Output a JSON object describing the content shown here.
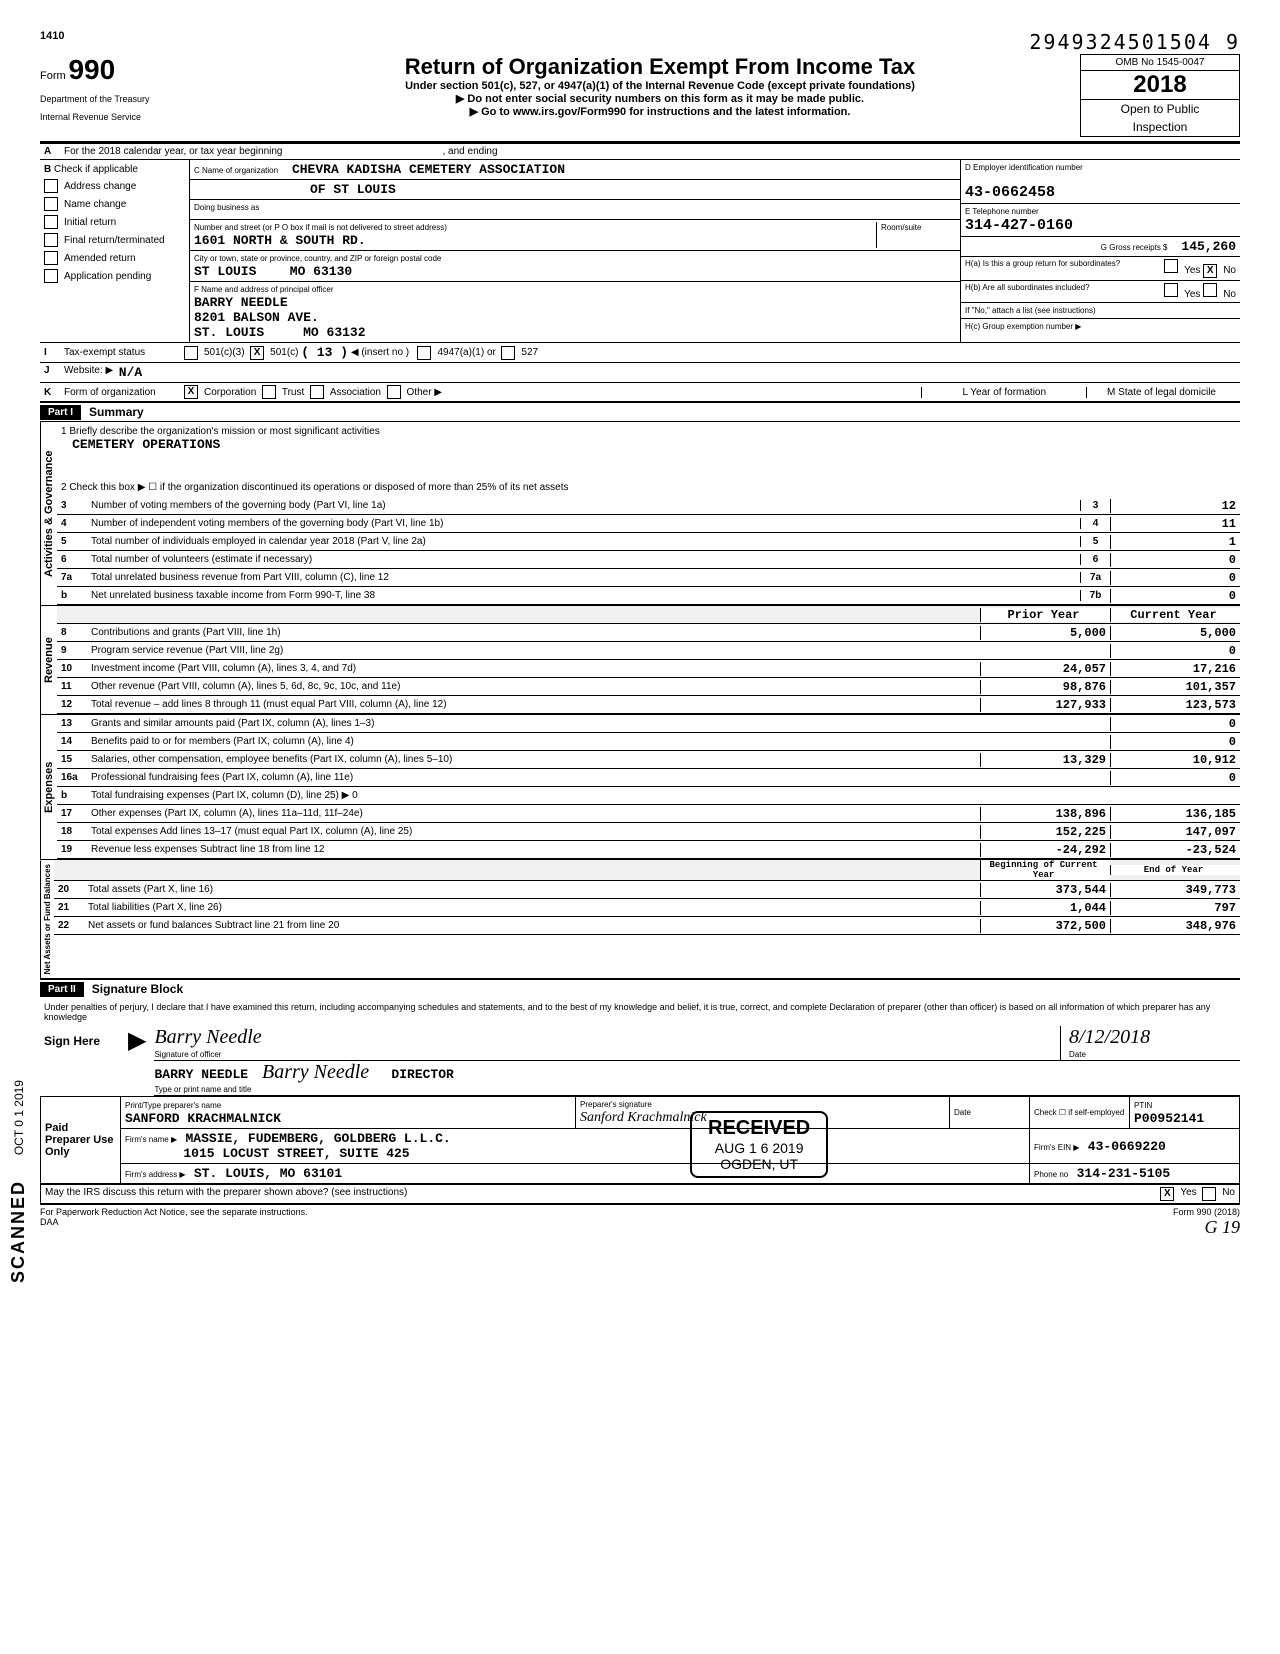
{
  "header": {
    "page_num_top": "1410",
    "sequence": "2949324501504 9",
    "form_label": "Form",
    "form_num": "990",
    "title": "Return of Organization Exempt From Income Tax",
    "subtitle": "Under section 501(c), 527, or 4947(a)(1) of the Internal Revenue Code (except private foundations)",
    "line1": "▶ Do not enter social security numbers on this form as it may be made public.",
    "line2": "▶ Go to www.irs.gov/Form990 for instructions and the latest information.",
    "dept": "Department of the Treasury",
    "irs": "Internal Revenue Service",
    "omb": "OMB No 1545-0047",
    "year": "2018",
    "open": "Open to Public",
    "inspection": "Inspection"
  },
  "row_a": {
    "label": "A",
    "text": "For the 2018 calendar year, or tax year beginning",
    "and_ending": ", and ending"
  },
  "section_b": {
    "label": "B",
    "check_label": "Check if applicable",
    "checks": [
      "Address change",
      "Name change",
      "Initial return",
      "Final return/terminated",
      "Amended return",
      "Application pending"
    ],
    "c_label": "C Name of organization",
    "org_name": "CHEVRA KADISHA CEMETERY ASSOCIATION",
    "org_name2": "OF ST LOUIS",
    "dba_label": "Doing business as",
    "addr_label": "Number and street (or P O box if mail is not delivered to street address)",
    "addr": "1601 NORTH & SOUTH RD.",
    "room_label": "Room/suite",
    "city_label": "City or town, state or province, country, and ZIP or foreign postal code",
    "city": "ST LOUIS",
    "state_zip": "MO  63130",
    "f_label": "F Name and address of principal officer",
    "officer": "BARRY NEEDLE",
    "officer_addr": "8201 BALSON AVE.",
    "officer_city": "ST. LOUIS",
    "officer_state_zip": "MO  63132"
  },
  "right_col": {
    "d_label": "D Employer identification number",
    "ein": "43-0662458",
    "e_label": "E Telephone number",
    "phone": "314-427-0160",
    "g_label": "G Gross receipts $",
    "gross": "145,260",
    "ha_label": "H(a) Is this a group return for subordinates?",
    "hb_label": "H(b) Are all subordinates included?",
    "h_note": "If \"No,\" attach a list (see instructions)",
    "hc_label": "H(c) Group exemption number ▶",
    "yes": "Yes",
    "no": "No",
    "x": "X"
  },
  "row_i": {
    "label": "I",
    "text": "Tax-exempt status",
    "opts": [
      "501(c)(3)",
      "501(c)",
      "(  13  )",
      "◀ (insert no )",
      "4947(a)(1) or",
      "527"
    ],
    "checked_501c": "X"
  },
  "row_j": {
    "label": "J",
    "text": "Website: ▶",
    "val": "N/A"
  },
  "row_k": {
    "label": "K",
    "text": "Form of organization",
    "opts": [
      "Corporation",
      "Trust",
      "Association",
      "Other ▶"
    ],
    "checked_corp": "X",
    "l_label": "L   Year of formation",
    "m_label": "M   State of legal domicile"
  },
  "part1": {
    "label": "Part I",
    "title": "Summary",
    "mission_label": "1   Briefly describe the organization's mission or most significant activities",
    "mission": "CEMETERY OPERATIONS",
    "line2": "2   Check this box ▶ ☐  if the organization discontinued its operations or disposed of more than 25% of its net assets",
    "governance_label": "Activities & Governance",
    "revenue_label": "Revenue",
    "expenses_label": "Expenses",
    "netassets_label": "Net Assets or Fund Balances",
    "received": "RECEIVED",
    "received_date": "AUG 1 6 2019",
    "received_loc": "OGDEN, UT",
    "prior_year": "Prior Year",
    "current_year": "Current Year",
    "beg_year": "Beginning of Current Year",
    "end_year": "End of Year"
  },
  "lines_gov": [
    {
      "n": "3",
      "t": "Number of voting members of the governing body (Part VI, line 1a)",
      "box": "3",
      "v": "12"
    },
    {
      "n": "4",
      "t": "Number of independent voting members of the governing body (Part VI, line 1b)",
      "box": "4",
      "v": "11"
    },
    {
      "n": "5",
      "t": "Total number of individuals employed in calendar year 2018 (Part V, line 2a)",
      "box": "5",
      "v": "1"
    },
    {
      "n": "6",
      "t": "Total number of volunteers (estimate if necessary)",
      "box": "6",
      "v": "0"
    },
    {
      "n": "7a",
      "t": "Total unrelated business revenue from Part VIII, column (C), line 12",
      "box": "7a",
      "v": "0"
    },
    {
      "n": "b",
      "t": "Net unrelated business taxable income from Form 990-T, line 38",
      "box": "7b",
      "v": "0"
    }
  ],
  "lines_rev": [
    {
      "n": "8",
      "t": "Contributions and grants (Part VIII, line 1h)",
      "p": "5,000",
      "c": "5,000"
    },
    {
      "n": "9",
      "t": "Program service revenue (Part VIII, line 2g)",
      "p": "",
      "c": "0"
    },
    {
      "n": "10",
      "t": "Investment income (Part VIII, column (A), lines 3, 4, and 7d)",
      "p": "24,057",
      "c": "17,216"
    },
    {
      "n": "11",
      "t": "Other revenue (Part VIII, column (A), lines 5, 6d, 8c, 9c, 10c, and 11e)",
      "p": "98,876",
      "c": "101,357"
    },
    {
      "n": "12",
      "t": "Total revenue – add lines 8 through 11 (must equal Part VIII, column (A), line 12)",
      "p": "127,933",
      "c": "123,573"
    }
  ],
  "lines_exp": [
    {
      "n": "13",
      "t": "Grants and similar amounts paid (Part IX, column (A), lines 1–3)",
      "p": "",
      "c": "0"
    },
    {
      "n": "14",
      "t": "Benefits paid to or for members (Part IX, column (A), line 4)",
      "p": "",
      "c": "0"
    },
    {
      "n": "15",
      "t": "Salaries, other compensation, employee benefits (Part IX, column (A), lines 5–10)",
      "p": "13,329",
      "c": "10,912"
    },
    {
      "n": "16a",
      "t": "Professional fundraising fees (Part IX, column (A), line 11e)",
      "p": "",
      "c": "0"
    },
    {
      "n": "b",
      "t": "Total fundraising expenses (Part IX, column (D), line 25) ▶                                0",
      "p": "",
      "c": ""
    },
    {
      "n": "17",
      "t": "Other expenses (Part IX, column (A), lines 11a–11d, 11f–24e)",
      "p": "138,896",
      "c": "136,185"
    },
    {
      "n": "18",
      "t": "Total expenses  Add lines 13–17 (must equal Part IX, column (A), line 25)",
      "p": "152,225",
      "c": "147,097"
    },
    {
      "n": "19",
      "t": "Revenue less expenses  Subtract line 18 from line 12",
      "p": "-24,292",
      "c": "-23,524"
    }
  ],
  "lines_net": [
    {
      "n": "20",
      "t": "Total assets (Part X, line 16)",
      "p": "373,544",
      "c": "349,773"
    },
    {
      "n": "21",
      "t": "Total liabilities (Part X, line 26)",
      "p": "1,044",
      "c": "797"
    },
    {
      "n": "22",
      "t": "Net assets or fund balances  Subtract line 21 from line 20",
      "p": "372,500",
      "c": "348,976"
    }
  ],
  "part2": {
    "label": "Part II",
    "title": "Signature Block",
    "perjury": "Under penalties of perjury, I declare that I have examined this return, including accompanying schedules and statements, and to the best of my knowledge and belief, it is true, correct, and complete Declaration of preparer (other than officer) is based on all information of which preparer has any knowledge",
    "sign_here": "Sign Here",
    "sig_label": "Signature of officer",
    "date_label": "Date",
    "sig_date": "8/12/2018",
    "type_label": "Type or print name and title",
    "name": "BARRY NEEDLE",
    "title2": "DIRECTOR",
    "sig_script": "Barry Needle"
  },
  "preparer": {
    "label": "Paid Preparer Use Only",
    "name_label": "Print/Type preparer's name",
    "name": "SANFORD KRACHMALNICK",
    "sig_label": "Preparer's signature",
    "date_label": "Date",
    "check_label": "Check ☐ if self-employed",
    "ptin_label": "PTIN",
    "ptin": "P00952141",
    "firm_label": "Firm's name    ▶",
    "firm": "MASSIE, FUDEMBERG, GOLDBERG L.L.C.",
    "ein_label": "Firm's EIN ▶",
    "ein": "43-0669220",
    "addr_label": "Firm's address  ▶",
    "addr": "1015 LOCUST STREET, SUITE 425",
    "city": "ST. LOUIS, MO   63101",
    "phone_label": "Phone no",
    "phone": "314-231-5105",
    "discuss": "May the IRS discuss this return with the preparer shown above? (see instructions)",
    "yes": "Yes",
    "no": "No",
    "x": "X"
  },
  "footer": {
    "paperwork": "For Paperwork Reduction Act Notice, see the separate instructions.",
    "daa": "DAA",
    "form": "Form 990 (2018)",
    "hand": "G 19"
  },
  "side": {
    "scanned": "SCANNED",
    "date": "OCT 0 1 2019"
  }
}
